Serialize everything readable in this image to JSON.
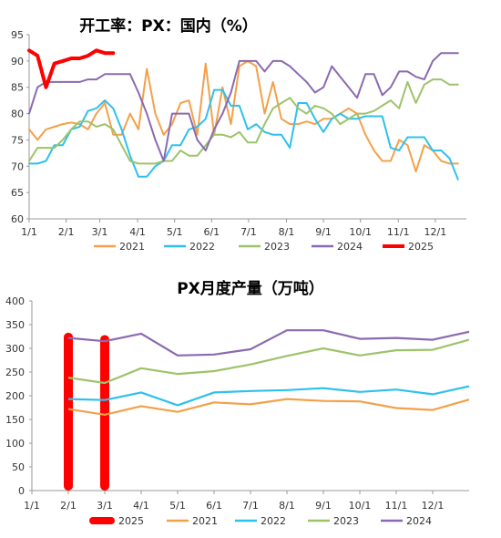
{
  "colors": {
    "y2021": "#F4A04A",
    "y2022": "#2EC0EE",
    "y2023": "#9DC36A",
    "y2024": "#8A6AB0",
    "y2025": "#FF0000",
    "axis": "#999999"
  },
  "chart_data": [
    {
      "type": "line",
      "title": "开工率：PX：国内（%）",
      "xlabel": "",
      "ylabel": "",
      "ylim": [
        60,
        95
      ],
      "yticks": [
        60,
        65,
        70,
        75,
        80,
        85,
        90,
        95
      ],
      "xlim": [
        0,
        52
      ],
      "xtick_labels": [
        "1/1",
        "2/1",
        "3/1",
        "4/1",
        "5/1",
        "6/1",
        "7/1",
        "8/1",
        "9/1",
        "10/1",
        "11/1",
        "12/1"
      ],
      "xtick_positions": [
        0,
        4.4,
        8.4,
        12.9,
        17.3,
        21.7,
        26.1,
        30.6,
        35.0,
        39.4,
        43.9,
        48.3
      ],
      "grid": false,
      "legend": "bottom",
      "series": [
        {
          "name": "2021",
          "color_key": "y2021",
          "width": 2,
          "x": [
            0,
            1,
            2,
            3,
            4,
            5,
            6,
            7,
            8,
            9,
            10,
            11,
            12,
            13,
            14,
            15,
            16,
            17,
            18,
            19,
            20,
            21,
            22,
            23,
            24,
            25,
            26,
            27,
            28,
            29,
            30,
            31,
            32,
            33,
            34,
            35,
            36,
            37,
            38,
            39,
            40,
            41,
            42,
            43,
            44,
            45,
            46,
            47,
            48,
            49,
            50,
            51
          ],
          "values": [
            77,
            75,
            77,
            77.5,
            78,
            78.3,
            78,
            77,
            80,
            82,
            76,
            76,
            80,
            77,
            88.5,
            80,
            76,
            78,
            82,
            82.5,
            76,
            89.5,
            76,
            85,
            78,
            89,
            90,
            89,
            80,
            86,
            79,
            78,
            78,
            78.5,
            78,
            79,
            79,
            80,
            81,
            80,
            76,
            73,
            71,
            71,
            75,
            74,
            69,
            74,
            73,
            71,
            70.5,
            70.5
          ]
        },
        {
          "name": "2022",
          "color_key": "y2022",
          "width": 2,
          "x": [
            0,
            1,
            2,
            3,
            4,
            5,
            6,
            7,
            8,
            9,
            10,
            11,
            12,
            13,
            14,
            15,
            16,
            17,
            18,
            19,
            20,
            21,
            22,
            23,
            24,
            25,
            26,
            27,
            28,
            29,
            30,
            31,
            32,
            33,
            34,
            35,
            36,
            37,
            38,
            39,
            40,
            41,
            42,
            43,
            44,
            45,
            46,
            47,
            48,
            49,
            50,
            51
          ],
          "values": [
            70.5,
            70.5,
            71,
            74,
            74,
            77,
            77.5,
            80.5,
            81,
            82.5,
            81,
            77,
            72,
            68,
            68,
            70,
            71,
            74,
            74,
            77,
            77.5,
            79,
            84.5,
            84.5,
            81.5,
            81.5,
            77,
            78,
            76.5,
            76,
            76,
            73.5,
            82,
            82,
            79,
            76.5,
            79,
            80,
            79,
            79,
            79.5,
            79.5,
            79.5,
            73.5,
            73,
            75.5,
            75.5,
            75.5,
            73,
            73,
            71.5,
            67.5
          ]
        },
        {
          "name": "2023",
          "color_key": "y2023",
          "width": 2,
          "x": [
            0,
            1,
            2,
            3,
            4,
            5,
            6,
            7,
            8,
            9,
            10,
            11,
            12,
            13,
            14,
            15,
            16,
            17,
            18,
            19,
            20,
            21,
            22,
            23,
            24,
            25,
            26,
            27,
            28,
            29,
            30,
            31,
            32,
            33,
            34,
            35,
            36,
            37,
            38,
            39,
            40,
            41,
            42,
            43,
            44,
            45,
            46,
            47,
            48,
            49,
            50,
            51
          ],
          "values": [
            71,
            73.5,
            73.5,
            73.5,
            75,
            77,
            78.5,
            78.5,
            77.5,
            78,
            77,
            74,
            71,
            70.5,
            70.5,
            70.5,
            71,
            71,
            73,
            72,
            72,
            74,
            76,
            76,
            75.5,
            76.5,
            74.5,
            74.5,
            78,
            81,
            82,
            83,
            81,
            80,
            81.5,
            81,
            80,
            78,
            79,
            80,
            80,
            80.5,
            81.5,
            82.5,
            81,
            86,
            82,
            85.5,
            86.5,
            86.5,
            85.5,
            85.5
          ]
        },
        {
          "name": "2024",
          "color_key": "y2024",
          "width": 2,
          "x": [
            0,
            1,
            2,
            3,
            4,
            5,
            6,
            7,
            8,
            9,
            10,
            11,
            12,
            13,
            14,
            15,
            16,
            17,
            18,
            19,
            20,
            21,
            22,
            23,
            24,
            25,
            26,
            27,
            28,
            29,
            30,
            31,
            32,
            33,
            34,
            35,
            36,
            37,
            38,
            39,
            40,
            41,
            42,
            43,
            44,
            45,
            46,
            47,
            48,
            49,
            50,
            51
          ],
          "values": [
            80,
            85,
            86,
            86,
            86,
            86,
            86,
            86.5,
            86.5,
            87.5,
            87.5,
            87.5,
            87.5,
            84,
            80,
            75,
            71,
            80,
            80,
            80,
            75,
            73,
            77,
            80,
            84,
            90,
            90,
            90,
            88,
            90,
            90,
            89,
            87.5,
            86,
            84,
            85,
            89,
            87,
            85,
            83,
            87.5,
            87.5,
            83.5,
            85,
            88,
            88,
            87,
            86.5,
            90,
            91.5,
            91.5,
            91.5
          ]
        },
        {
          "name": "2025",
          "color_key": "y2025",
          "width": 4,
          "x": [
            0,
            1,
            2,
            3,
            4,
            5,
            6,
            7,
            8,
            9,
            10
          ],
          "values": [
            92,
            91,
            85,
            89.5,
            90,
            90.5,
            90.5,
            91,
            92,
            91.5,
            91.5
          ]
        }
      ]
    },
    {
      "type": "line",
      "title": "PX月度产量（万吨）",
      "xlabel": "",
      "ylabel": "",
      "ylim": [
        0,
        400
      ],
      "yticks": [
        0,
        50,
        100,
        150,
        200,
        250,
        300,
        350,
        400
      ],
      "xlim": [
        0,
        12
      ],
      "xtick_labels": [
        "1/1",
        "2/1",
        "3/1",
        "4/1",
        "5/1",
        "6/1",
        "7/1",
        "8/1",
        "9/1",
        "10/1",
        "11/1",
        "12/1"
      ],
      "grid": false,
      "legend": "bottom",
      "series": [
        {
          "name": "2021",
          "color_key": "y2021",
          "type": "line",
          "x": [
            1,
            2,
            3,
            4,
            5,
            6,
            7,
            8,
            9,
            10,
            11,
            12
          ],
          "values": [
            172,
            160,
            178,
            166,
            186,
            182,
            193,
            189,
            188,
            174,
            170,
            192
          ]
        },
        {
          "name": "2022",
          "color_key": "y2022",
          "type": "line",
          "x": [
            1,
            2,
            3,
            4,
            5,
            6,
            7,
            8,
            9,
            10,
            11,
            12
          ],
          "values": [
            193,
            191,
            207,
            180,
            207,
            210,
            212,
            216,
            208,
            213,
            203,
            220
          ]
        },
        {
          "name": "2023",
          "color_key": "y2023",
          "type": "line",
          "x": [
            1,
            2,
            3,
            4,
            5,
            6,
            7,
            8,
            9,
            10,
            11,
            12
          ],
          "values": [
            238,
            227,
            258,
            246,
            252,
            266,
            284,
            300,
            285,
            296,
            297,
            318
          ]
        },
        {
          "name": "2024",
          "color_key": "y2024",
          "type": "line",
          "x": [
            1,
            2,
            3,
            4,
            5,
            6,
            7,
            8,
            9,
            10,
            11,
            12
          ],
          "values": [
            322,
            315,
            331,
            285,
            287,
            298,
            338,
            338,
            320,
            322,
            318,
            335
          ]
        },
        {
          "name": "2025",
          "color_key": "y2025",
          "type": "bar",
          "x": [
            1,
            2
          ],
          "values": [
            333,
            328
          ]
        }
      ]
    }
  ]
}
